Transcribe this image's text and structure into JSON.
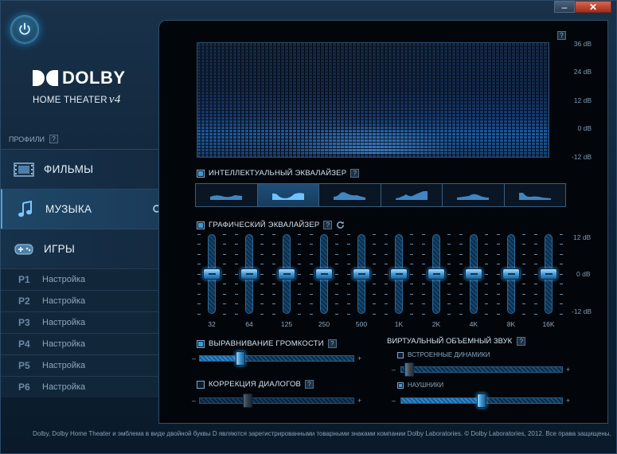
{
  "window": {
    "minimize": "–",
    "close": "✕"
  },
  "brand": {
    "name": "DOLBY",
    "subtitle": "HOME THEATER",
    "version": "v4"
  },
  "sidebar": {
    "profiles_label": "ПРОФИЛИ",
    "help": "?",
    "profiles": [
      {
        "label": "ФИЛЬМЫ",
        "icon": "film-icon",
        "active": false
      },
      {
        "label": "МУЗЫКА",
        "icon": "music-note-icon",
        "active": true
      },
      {
        "label": "ИГРЫ",
        "icon": "gamepad-icon",
        "active": false
      }
    ],
    "presets": [
      {
        "key": "P1",
        "label": "Настройка"
      },
      {
        "key": "P2",
        "label": "Настройка"
      },
      {
        "key": "P3",
        "label": "Настройка"
      },
      {
        "key": "P4",
        "label": "Настройка"
      },
      {
        "key": "P5",
        "label": "Настройка"
      },
      {
        "key": "P6",
        "label": "Настройка"
      }
    ]
  },
  "visualizer": {
    "help": "?",
    "db_labels": [
      "36 dB",
      "24 dB",
      "12 dB",
      "0 dB",
      "-12 dB"
    ]
  },
  "smart_eq": {
    "label": "ИНТЕЛЛЕКТУАЛЬНЫЙ ЭКВАЛАЙЗЕР",
    "enabled": true,
    "help": "?",
    "presets": [
      "preset-1-icon",
      "preset-2-icon",
      "preset-3-icon",
      "preset-4-icon",
      "preset-5-icon",
      "preset-6-icon"
    ],
    "selected_index": 1
  },
  "graphic_eq": {
    "label": "ГРАФИЧЕСКИЙ ЭКВАЛАЙЗЕР",
    "enabled": true,
    "help": "?",
    "db_labels": [
      "12 dB",
      "0 dB",
      "-12 dB"
    ],
    "bands": [
      {
        "freq": "32",
        "gain_db": 0
      },
      {
        "freq": "64",
        "gain_db": 0
      },
      {
        "freq": "125",
        "gain_db": 0
      },
      {
        "freq": "250",
        "gain_db": 0
      },
      {
        "freq": "500",
        "gain_db": 0
      },
      {
        "freq": "1K",
        "gain_db": 0
      },
      {
        "freq": "2K",
        "gain_db": 0
      },
      {
        "freq": "4K",
        "gain_db": 0
      },
      {
        "freq": "8K",
        "gain_db": 0
      },
      {
        "freq": "16K",
        "gain_db": 0
      }
    ]
  },
  "volume_leveler": {
    "label": "ВЫРАВНИВАНИЕ ГРОМКОСТИ",
    "enabled": true,
    "help": "?",
    "minus": "–",
    "plus": "+",
    "level": 0.25
  },
  "dialog_enhancer": {
    "label": "КОРРЕКЦИЯ ДИАЛОГОВ",
    "enabled": false,
    "help": "?",
    "minus": "–",
    "plus": "+",
    "level": 0.3
  },
  "virtual_surround": {
    "label": "ВИРТУАЛЬНЫЙ ОБЪЕМНЫЙ ЗВУК",
    "help": "?",
    "speakers": {
      "label": "ВСТРОЕННЫЕ ДИНАМИКИ",
      "enabled": false,
      "minus": "–",
      "plus": "+",
      "level": 0.02
    },
    "headphones": {
      "label": "НАУШНИКИ",
      "enabled": true,
      "minus": "–",
      "plus": "+",
      "level": 0.5
    }
  },
  "footer": "Dolby, Dolby Home Theater и эмблема в виде двойной буквы D являются зарегистрированными товарными знаками компании Dolby Laboratories. © Dolby Laboratories, 2012. Все права защищены."
}
